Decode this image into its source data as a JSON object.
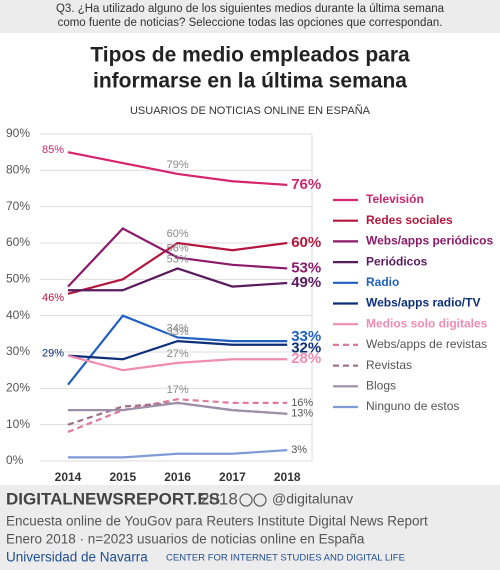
{
  "question": [
    "Q3. ¿Ha utilizado alguno de los siguientes medios durante la última semana",
    "como fuente de noticias? Seleccione todas las opciones que correspondan."
  ],
  "chart_data": {
    "type": "line",
    "title": [
      "Tipos de medio empleados para",
      "informarse en la última semana"
    ],
    "subtitle": "USUARIOS DE NOTICIAS ONLINE EN ESPAÑA",
    "categories": [
      "2014",
      "2015",
      "2016",
      "2017",
      "2018"
    ],
    "ylim": [
      0,
      90
    ],
    "yticks": [
      {
        "value": 0,
        "label": "0%"
      },
      {
        "value": 10,
        "label": "10%"
      },
      {
        "value": 20,
        "label": "20%"
      },
      {
        "value": 30,
        "label": "30%"
      },
      {
        "value": 40,
        "label": "40%"
      },
      {
        "value": 50,
        "label": "50%"
      },
      {
        "value": 60,
        "label": "60%"
      },
      {
        "value": 70,
        "label": "70%"
      },
      {
        "value": 80,
        "label": "80%"
      },
      {
        "value": 90,
        "label": "90%"
      }
    ],
    "grid": true,
    "series": [
      {
        "name": "Televisión",
        "color": "#d6246e",
        "label_color": "#c8286e",
        "values": [
          85,
          82,
          79,
          77,
          76
        ],
        "value_labels": [
          "85%",
          null,
          "79%",
          null,
          "76%"
        ]
      },
      {
        "name": "Redes sociales",
        "color": "#b5173c",
        "label_color": "#b5173c",
        "values": [
          46,
          50,
          60,
          58,
          60
        ],
        "value_labels": [
          "46%",
          null,
          "60%",
          null,
          "60%"
        ]
      },
      {
        "name": "Webs/apps periódicos",
        "color": "#8b1a6b",
        "label_color": "#8b1a6b",
        "values": [
          48,
          64,
          56,
          54,
          53
        ],
        "value_labels": [
          null,
          null,
          "56%",
          null,
          "53%"
        ]
      },
      {
        "name": "Periódicos",
        "color": "#5a1a5e",
        "label_color": "#5a1a5e",
        "values": [
          47,
          47,
          53,
          48,
          49
        ],
        "value_labels": [
          null,
          null,
          "53%",
          null,
          "49%"
        ]
      },
      {
        "name": "Radio",
        "color": "#1f5fbf",
        "label_color": "#1f5fbf",
        "values": [
          21,
          40,
          34,
          33,
          33
        ],
        "value_labels": [
          null,
          null,
          "34%",
          null,
          "33%"
        ]
      },
      {
        "name": "Webs/apps radio/TV",
        "color": "#0d2f7a",
        "label_color": "#0d2f7a",
        "values": [
          29,
          28,
          33,
          32,
          32
        ],
        "value_labels": [
          "29%",
          null,
          "33%",
          null,
          "32%"
        ]
      },
      {
        "name": "Medios solo digitales",
        "color": "#f08cb0",
        "label_color": "#f08cb0",
        "values": [
          29,
          25,
          27,
          28,
          28
        ],
        "value_labels": [
          null,
          null,
          "27%",
          null,
          "28%"
        ]
      },
      {
        "name": "Webs/apps de revistas",
        "color": "#e07a9a",
        "label_color": "#555555",
        "dashed": true,
        "values": [
          8,
          14,
          17,
          16,
          16
        ],
        "value_labels": [
          null,
          null,
          "17%",
          null,
          "16%"
        ]
      },
      {
        "name": "Revistas",
        "color": "#a0708a",
        "label_color": "#555555",
        "dashed": true,
        "values": [
          10,
          15,
          16,
          14,
          13
        ],
        "value_labels": [
          null,
          null,
          null,
          null,
          null
        ]
      },
      {
        "name": "Blogs",
        "color": "#9e8fa8",
        "label_color": "#555555",
        "values": [
          14,
          14,
          16,
          14,
          13
        ],
        "value_labels": [
          null,
          null,
          null,
          null,
          "13%"
        ]
      },
      {
        "name": "Ninguno de estos",
        "color": "#7f9bd6",
        "label_color": "#555555",
        "values": [
          1,
          1,
          2,
          2,
          3
        ],
        "value_labels": [
          null,
          null,
          null,
          null,
          "3%"
        ]
      }
    ]
  },
  "footer": {
    "brand": "DIGITALNEWSREPORT.ES",
    "year": "2018",
    "handle": "@digitalunav",
    "line1": "Encuesta online de YouGov para Reuters Institute Digital News Report",
    "line2": "Enero 2018 · n=2023 usuarios de noticias online en España",
    "university": "Universidad de Navarra",
    "center": "CENTER FOR INTERNET STUDIES AND DIGITAL LIFE"
  }
}
